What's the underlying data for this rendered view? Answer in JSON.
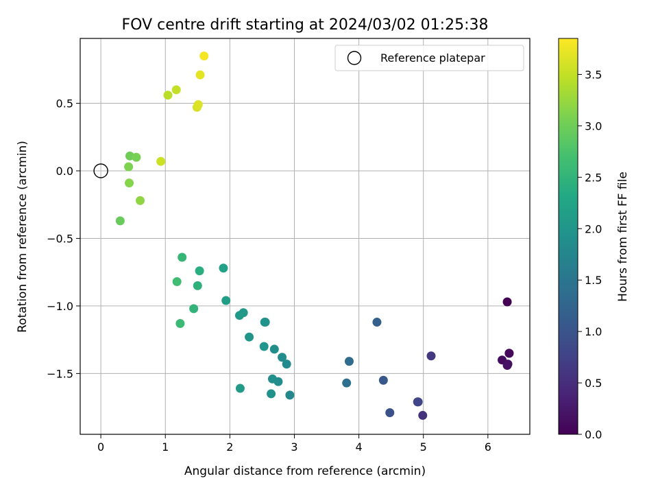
{
  "chart_data": {
    "type": "scatter",
    "title": "FOV centre drift starting at 2024/03/02 01:25:38",
    "xlabel": "Angular distance from reference (arcmin)",
    "ylabel": "Rotation from reference (arcmin)",
    "xlim": [
      -0.32,
      6.65
    ],
    "ylim": [
      -1.95,
      0.98
    ],
    "xticks": [
      0,
      1,
      2,
      3,
      4,
      5,
      6
    ],
    "xtick_labels": [
      "0",
      "1",
      "2",
      "3",
      "4",
      "5",
      "6"
    ],
    "yticks": [
      -1.5,
      -1.0,
      -0.5,
      0.0,
      0.5
    ],
    "ytick_labels": [
      "−1.5",
      "−1.0",
      "−0.5",
      "0.0",
      "0.5"
    ],
    "grid": true,
    "legend": {
      "position": "top-right",
      "entries": [
        "Reference platepar"
      ]
    },
    "reference_point": {
      "name": "Reference platepar",
      "x": 0,
      "y": 0
    },
    "colormap": "viridis",
    "colorbar": {
      "label": "Hours from first FF file",
      "range": [
        0,
        3.85
      ],
      "ticks": [
        0.0,
        0.5,
        1.0,
        1.5,
        2.0,
        2.5,
        3.0,
        3.5
      ],
      "tick_labels": [
        "0.0",
        "0.5",
        "1.0",
        "1.5",
        "2.0",
        "2.5",
        "3.0",
        "3.5"
      ]
    },
    "points": [
      {
        "x": 6.3,
        "y": -0.97,
        "hours": 0.0
      },
      {
        "x": 6.33,
        "y": -1.35,
        "hours": 0.05
      },
      {
        "x": 6.33,
        "y": -1.35,
        "hours": 0.08
      },
      {
        "x": 6.22,
        "y": -1.4,
        "hours": 0.12
      },
      {
        "x": 6.3,
        "y": -1.44,
        "hours": 0.15
      },
      {
        "x": 6.31,
        "y": -1.43,
        "hours": 0.18
      },
      {
        "x": 4.99,
        "y": -1.81,
        "hours": 0.55
      },
      {
        "x": 5.12,
        "y": -1.37,
        "hours": 0.62
      },
      {
        "x": 4.91,
        "y": -1.71,
        "hours": 0.75
      },
      {
        "x": 4.92,
        "y": -1.71,
        "hours": 0.8
      },
      {
        "x": 4.48,
        "y": -1.79,
        "hours": 0.95
      },
      {
        "x": 4.38,
        "y": -1.55,
        "hours": 1.05
      },
      {
        "x": 4.28,
        "y": -1.12,
        "hours": 1.15
      },
      {
        "x": 3.85,
        "y": -1.41,
        "hours": 1.35
      },
      {
        "x": 3.81,
        "y": -1.57,
        "hours": 1.4
      },
      {
        "x": 2.93,
        "y": -1.66,
        "hours": 1.8
      },
      {
        "x": 2.88,
        "y": -1.43,
        "hours": 1.82
      },
      {
        "x": 2.81,
        "y": -1.38,
        "hours": 1.85
      },
      {
        "x": 2.75,
        "y": -1.56,
        "hours": 1.87
      },
      {
        "x": 2.69,
        "y": -1.32,
        "hours": 1.88
      },
      {
        "x": 2.66,
        "y": -1.54,
        "hours": 1.9
      },
      {
        "x": 2.64,
        "y": -1.65,
        "hours": 1.92
      },
      {
        "x": 2.55,
        "y": -1.12,
        "hours": 1.95
      },
      {
        "x": 2.54,
        "y": -1.12,
        "hours": 1.96
      },
      {
        "x": 2.53,
        "y": -1.3,
        "hours": 1.97
      },
      {
        "x": 2.3,
        "y": -1.23,
        "hours": 2.0
      },
      {
        "x": 2.21,
        "y": -1.05,
        "hours": 2.05
      },
      {
        "x": 2.15,
        "y": -1.07,
        "hours": 2.08
      },
      {
        "x": 2.16,
        "y": -1.61,
        "hours": 2.1
      },
      {
        "x": 1.94,
        "y": -0.96,
        "hours": 2.15
      },
      {
        "x": 1.9,
        "y": -0.72,
        "hours": 2.2
      },
      {
        "x": 1.53,
        "y": -0.74,
        "hours": 2.4
      },
      {
        "x": 1.5,
        "y": -0.85,
        "hours": 2.45
      },
      {
        "x": 1.44,
        "y": -1.02,
        "hours": 2.5
      },
      {
        "x": 1.26,
        "y": -0.64,
        "hours": 2.55
      },
      {
        "x": 1.23,
        "y": -1.13,
        "hours": 2.6
      },
      {
        "x": 1.18,
        "y": -0.82,
        "hours": 2.65
      },
      {
        "x": 0.3,
        "y": -0.37,
        "hours": 2.95
      },
      {
        "x": 0.45,
        "y": 0.11,
        "hours": 3.0
      },
      {
        "x": 0.55,
        "y": 0.1,
        "hours": 3.05
      },
      {
        "x": 0.43,
        "y": 0.03,
        "hours": 3.1
      },
      {
        "x": 0.44,
        "y": -0.09,
        "hours": 3.15
      },
      {
        "x": 0.61,
        "y": -0.22,
        "hours": 3.2
      },
      {
        "x": 0.93,
        "y": 0.07,
        "hours": 3.55
      },
      {
        "x": 1.04,
        "y": 0.56,
        "hours": 3.45
      },
      {
        "x": 1.17,
        "y": 0.6,
        "hours": 3.5
      },
      {
        "x": 1.49,
        "y": 0.47,
        "hours": 3.62
      },
      {
        "x": 1.51,
        "y": 0.49,
        "hours": 3.65
      },
      {
        "x": 1.54,
        "y": 0.71,
        "hours": 3.7
      },
      {
        "x": 1.6,
        "y": 0.85,
        "hours": 3.8
      }
    ]
  }
}
